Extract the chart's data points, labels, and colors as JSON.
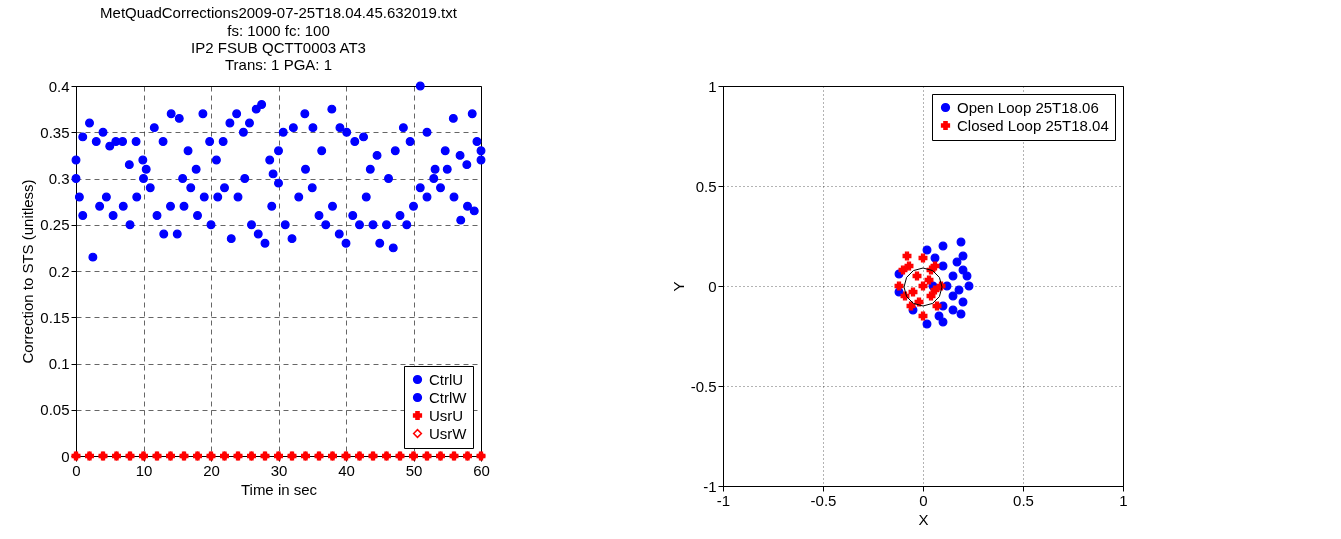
{
  "chart_data": [
    {
      "type": "scatter",
      "title": "MetQuadCorrections2009-07-25T18.04.45.632019.txt",
      "subtitle": "fs: 1000 fc: 100\nIP2 FSUB QCTT0003 AT3\nTrans: 1 PGA: 1",
      "xlabel": "Time in sec",
      "ylabel": "Correction to STS (unitless)",
      "xlim": [
        0,
        60
      ],
      "ylim": [
        0,
        0.4
      ],
      "xticks": [
        0,
        10,
        20,
        30,
        40,
        50,
        60
      ],
      "yticks": [
        0,
        0.05,
        0.1,
        0.15,
        0.2,
        0.25,
        0.3,
        0.35,
        0.4
      ],
      "grid": true,
      "legend": "bottom right",
      "series": [
        {
          "name": "CtrlU",
          "color": "#0000ff",
          "marker": "circle",
          "x": [
            0,
            1.0,
            2.0,
            3.0,
            4.0,
            5.0,
            5.9,
            6.9,
            7.9,
            8.9,
            9.9,
            10.4,
            11.6,
            12.9,
            14.1,
            15.3,
            15.8,
            16.6,
            17.8,
            18.8,
            19.8,
            20.8,
            21.8,
            22.8,
            23.8,
            24.8,
            25.7,
            26.7,
            27.5,
            28.7,
            29.2,
            30.0,
            30.7,
            32.2,
            33.9,
            35.1,
            36.4,
            37.9,
            39.1,
            40.1,
            41.3,
            42.6,
            43.6,
            44.6,
            46.3,
            47.3,
            48.5,
            49.5,
            51.0,
            52.0,
            53.2,
            54.7,
            55.9,
            56.9,
            57.9,
            58.7,
            59.4,
            60
          ],
          "values": [
            0.32,
            0.345,
            0.36,
            0.34,
            0.35,
            0.335,
            0.34,
            0.34,
            0.315,
            0.34,
            0.32,
            0.31,
            0.355,
            0.34,
            0.37,
            0.365,
            0.3,
            0.33,
            0.31,
            0.37,
            0.34,
            0.32,
            0.34,
            0.36,
            0.37,
            0.35,
            0.36,
            0.375,
            0.38,
            0.32,
            0.305,
            0.33,
            0.35,
            0.355,
            0.37,
            0.355,
            0.33,
            0.375,
            0.355,
            0.35,
            0.34,
            0.345,
            0.31,
            0.325,
            0.3,
            0.33,
            0.355,
            0.34,
            0.4,
            0.35,
            0.31,
            0.33,
            0.365,
            0.325,
            0.315,
            0.37,
            0.34,
            0.33
          ]
        },
        {
          "name": "CtrlW",
          "color": "#0000ff",
          "marker": "circle",
          "x": [
            0,
            0.5,
            1,
            2.5,
            3.5,
            4.5,
            5.5,
            7,
            8,
            9,
            10,
            11,
            12,
            13,
            14,
            15,
            16,
            17,
            18,
            19,
            20,
            21,
            22,
            23,
            24,
            25,
            26,
            27,
            28,
            29,
            30,
            31,
            32,
            33,
            34,
            35,
            36,
            37,
            38,
            39,
            40,
            41,
            42,
            43,
            44,
            45,
            46,
            47,
            48,
            49,
            50,
            51,
            52,
            53,
            54,
            55,
            56,
            57,
            58,
            59,
            60
          ],
          "values": [
            0.3,
            0.28,
            0.26,
            0.215,
            0.27,
            0.28,
            0.26,
            0.27,
            0.25,
            0.28,
            0.3,
            0.29,
            0.26,
            0.24,
            0.27,
            0.24,
            0.27,
            0.29,
            0.26,
            0.28,
            0.25,
            0.28,
            0.29,
            0.235,
            0.28,
            0.3,
            0.25,
            0.24,
            0.23,
            0.27,
            0.295,
            0.25,
            0.235,
            0.28,
            0.31,
            0.29,
            0.26,
            0.25,
            0.27,
            0.24,
            0.23,
            0.26,
            0.25,
            0.28,
            0.25,
            0.23,
            0.25,
            0.225,
            0.26,
            0.25,
            0.27,
            0.29,
            0.28,
            0.3,
            0.29,
            0.31,
            0.28,
            0.255,
            0.27,
            0.265,
            0.32
          ]
        },
        {
          "name": "UsrU",
          "color": "#ff0000",
          "marker": "cross",
          "x": [
            0,
            2,
            4,
            6,
            8,
            10,
            12,
            14,
            16,
            18,
            20,
            22,
            24,
            26,
            28,
            30,
            32,
            34,
            36,
            38,
            40,
            42,
            44,
            46,
            48,
            50,
            52,
            54,
            56,
            58,
            60
          ],
          "values": [
            0,
            0,
            0,
            0,
            0,
            0,
            0,
            0,
            0,
            0,
            0,
            0,
            0,
            0,
            0,
            0,
            0,
            0,
            0,
            0,
            0,
            0,
            0,
            0,
            0,
            0,
            0,
            0,
            0,
            0,
            0
          ]
        },
        {
          "name": "UsrW",
          "color": "#ff0000",
          "marker": "diamond",
          "x": [
            0,
            2,
            4,
            6,
            8,
            10,
            12,
            14,
            16,
            18,
            20,
            22,
            24,
            26,
            28,
            30,
            32,
            34,
            36,
            38,
            40,
            42,
            44,
            46,
            48,
            50,
            52,
            54,
            56,
            58,
            60
          ],
          "values": [
            0,
            0,
            0,
            0,
            0,
            0,
            0,
            0,
            0,
            0,
            0,
            0,
            0,
            0,
            0,
            0,
            0,
            0,
            0,
            0,
            0,
            0,
            0,
            0,
            0,
            0,
            0,
            0,
            0,
            0,
            0
          ]
        }
      ]
    },
    {
      "type": "scatter",
      "xlabel": "X",
      "ylabel": "Y",
      "xlim": [
        -1,
        1
      ],
      "ylim": [
        -1,
        1
      ],
      "xticks": [
        -1,
        -0.5,
        0,
        0.5,
        1
      ],
      "yticks": [
        -1,
        -0.5,
        0,
        0.5,
        1
      ],
      "grid": true,
      "legend": "top right",
      "series": [
        {
          "name": "Open Loop 25T18.06",
          "color": "#0000ff",
          "marker": "circle",
          "x": [
            0.02,
            0.1,
            0.19,
            0.2,
            0.22,
            0.23,
            0.2,
            0.19,
            0.1,
            0.02,
            -0.05,
            -0.12,
            -0.12,
            -0.06,
            0.1,
            0.15,
            0.15,
            0.1,
            0.05,
            0.12,
            0.17,
            0.06,
            0.15,
            0.08,
            0.2,
            0.18
          ],
          "values": [
            0.18,
            0.2,
            0.22,
            0.15,
            0.05,
            0.0,
            -0.08,
            -0.14,
            -0.18,
            -0.19,
            -0.12,
            -0.03,
            0.06,
            null,
            0.1,
            0.05,
            -0.05,
            -0.1,
            0.0,
            0.0,
            0.12,
            0.14,
            -0.12,
            -0.15,
            0.08,
            -0.02
          ]
        },
        {
          "name": "Closed Loop 25T18.04",
          "color": "#ff0000",
          "marker": "cross",
          "x": [
            -0.08,
            0.0,
            0.06,
            0.09,
            0.07,
            0.0,
            -0.06,
            -0.12,
            -0.1,
            -0.03,
            0.03,
            0.0,
            -0.05,
            0.04,
            -0.02,
            -0.07,
            0.04,
            0.06,
            -0.09
          ],
          "values": [
            0.15,
            0.14,
            0.1,
            0.0,
            -0.1,
            -0.15,
            -0.1,
            0.0,
            0.08,
            0.05,
            0.03,
            0.0,
            -0.03,
            -0.05,
            -0.08,
            0.1,
            0.08,
            -0.02,
            -0.05
          ]
        },
        {
          "type": "line",
          "color": "#000000",
          "line_style": "solid",
          "x": [
            -0.095,
            -0.082,
            -0.048,
            0.0,
            0.048,
            0.082,
            0.095
          ],
          "values": [
            -0.005,
            0.043,
            0.077,
            0.09,
            0.077,
            0.043,
            -0.005
          ]
        },
        {
          "type": "line",
          "color": "#000000",
          "line_style": "solid",
          "x": [
            -0.095,
            -0.082,
            -0.048,
            0.0,
            0.048,
            0.082,
            0.095
          ],
          "values": [
            -0.005,
            -0.053,
            -0.087,
            -0.1,
            -0.087,
            -0.053,
            -0.005
          ]
        }
      ]
    }
  ]
}
